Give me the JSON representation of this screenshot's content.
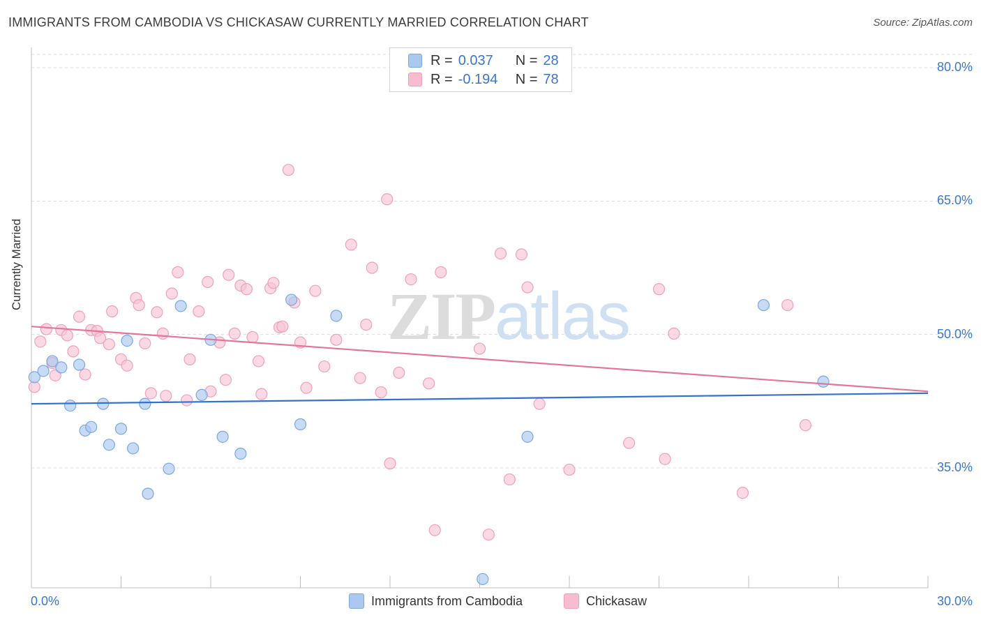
{
  "header": {
    "title": "IMMIGRANTS FROM CAMBODIA VS CHICKASAW CURRENTLY MARRIED CORRELATION CHART",
    "source": "Source: ZipAtlas.com"
  },
  "watermark": {
    "part1": "ZIP",
    "part2": "atlas"
  },
  "legend": {
    "rows": [
      {
        "r_label": "R =",
        "r_value": "0.037",
        "n_label": "N =",
        "n_value": "28",
        "color": "#aac8f0"
      },
      {
        "r_label": "R =",
        "r_value": "-0.194",
        "n_label": "N =",
        "n_value": "78",
        "color": "#f8bcd0"
      }
    ]
  },
  "bottom_legend": {
    "items": [
      {
        "label": "Immigrants from Cambodia",
        "color": "#aac8f0"
      },
      {
        "label": "Chickasaw",
        "color": "#f8bcd0"
      }
    ]
  },
  "colors": {
    "blue_fill": "#aac8f0",
    "blue_stroke": "#7aa8e0",
    "blue_line": "#2f72cf",
    "pink_fill": "#f8c4d6",
    "pink_stroke": "#eea0bc",
    "pink_line": "#e4749a",
    "tick_text": "#3a76d0",
    "grid": "#dcdcdc"
  },
  "chart_data": {
    "type": "scatter",
    "title": "IMMIGRANTS FROM CAMBODIA VS CHICKASAW CURRENTLY MARRIED CORRELATION CHART",
    "xlabel": "",
    "ylabel": "Currently Married",
    "xlim": [
      0,
      30
    ],
    "ylim": [
      20,
      82
    ],
    "x_tick_labels": [
      "0.0%",
      "30.0%"
    ],
    "y_ticks": [
      35,
      50,
      65,
      80
    ],
    "y_tick_labels": [
      "35.0%",
      "50.0%",
      "65.0%",
      "80.0%"
    ],
    "grid": true,
    "legend_position": "top-center",
    "series": [
      {
        "name": "Immigrants from Cambodia",
        "color": "#aac8f0",
        "points": [
          [
            0.1,
            45.2
          ],
          [
            0.4,
            45.9
          ],
          [
            0.7,
            47.0
          ],
          [
            1.0,
            46.3
          ],
          [
            1.3,
            42.0
          ],
          [
            1.6,
            46.6
          ],
          [
            1.8,
            39.2
          ],
          [
            2.0,
            39.6
          ],
          [
            2.4,
            42.2
          ],
          [
            2.6,
            37.6
          ],
          [
            3.0,
            39.4
          ],
          [
            3.2,
            49.3
          ],
          [
            3.4,
            37.2
          ],
          [
            3.8,
            42.2
          ],
          [
            3.9,
            32.1
          ],
          [
            4.6,
            34.9
          ],
          [
            5.0,
            53.2
          ],
          [
            5.7,
            43.2
          ],
          [
            6.0,
            49.4
          ],
          [
            6.4,
            38.5
          ],
          [
            7.0,
            36.6
          ],
          [
            8.7,
            53.9
          ],
          [
            9.0,
            39.9
          ],
          [
            10.2,
            52.1
          ],
          [
            15.1,
            22.5
          ],
          [
            16.6,
            38.5
          ],
          [
            24.5,
            53.3
          ],
          [
            26.5,
            44.7
          ]
        ],
        "trend": {
          "x": [
            0,
            30
          ],
          "y": [
            42.2,
            43.4
          ]
        }
      },
      {
        "name": "Chickasaw",
        "color": "#f8bcd0",
        "points": [
          [
            0.1,
            44.1
          ],
          [
            0.3,
            49.2
          ],
          [
            0.5,
            50.6
          ],
          [
            0.7,
            46.8
          ],
          [
            0.8,
            45.4
          ],
          [
            1.0,
            50.5
          ],
          [
            1.2,
            49.9
          ],
          [
            1.4,
            48.1
          ],
          [
            1.6,
            52.0
          ],
          [
            1.8,
            45.5
          ],
          [
            2.0,
            50.5
          ],
          [
            2.2,
            50.4
          ],
          [
            2.3,
            49.6
          ],
          [
            2.6,
            48.9
          ],
          [
            2.7,
            52.6
          ],
          [
            3.0,
            47.2
          ],
          [
            3.2,
            46.5
          ],
          [
            3.5,
            54.1
          ],
          [
            3.6,
            53.3
          ],
          [
            3.8,
            49.0
          ],
          [
            4.0,
            43.4
          ],
          [
            4.2,
            52.5
          ],
          [
            4.4,
            50.1
          ],
          [
            4.5,
            43.1
          ],
          [
            4.7,
            54.6
          ],
          [
            4.9,
            57.0
          ],
          [
            5.2,
            42.6
          ],
          [
            5.3,
            47.2
          ],
          [
            5.6,
            52.6
          ],
          [
            5.9,
            55.9
          ],
          [
            6.0,
            43.6
          ],
          [
            6.3,
            49.1
          ],
          [
            6.5,
            44.9
          ],
          [
            6.6,
            56.7
          ],
          [
            6.8,
            50.1
          ],
          [
            7.0,
            55.5
          ],
          [
            7.2,
            55.1
          ],
          [
            7.4,
            49.7
          ],
          [
            7.6,
            47.0
          ],
          [
            7.7,
            43.3
          ],
          [
            8.0,
            55.2
          ],
          [
            8.1,
            55.8
          ],
          [
            8.3,
            50.8
          ],
          [
            8.4,
            50.9
          ],
          [
            8.6,
            68.5
          ],
          [
            8.8,
            53.6
          ],
          [
            9.0,
            49.1
          ],
          [
            9.2,
            44.0
          ],
          [
            9.5,
            54.9
          ],
          [
            9.8,
            46.4
          ],
          [
            10.2,
            49.4
          ],
          [
            10.7,
            60.1
          ],
          [
            11.0,
            45.1
          ],
          [
            11.2,
            51.1
          ],
          [
            11.4,
            57.5
          ],
          [
            11.7,
            43.5
          ],
          [
            11.9,
            65.2
          ],
          [
            12.0,
            35.5
          ],
          [
            12.3,
            45.7
          ],
          [
            12.7,
            56.2
          ],
          [
            13.3,
            44.5
          ],
          [
            13.5,
            28.0
          ],
          [
            13.7,
            57.0
          ],
          [
            15.0,
            48.4
          ],
          [
            15.3,
            27.5
          ],
          [
            15.7,
            59.1
          ],
          [
            16.0,
            33.7
          ],
          [
            16.4,
            59.0
          ],
          [
            16.6,
            55.3
          ],
          [
            17.0,
            42.2
          ],
          [
            18.0,
            34.8
          ],
          [
            20.0,
            37.8
          ],
          [
            21.0,
            55.1
          ],
          [
            21.2,
            36.0
          ],
          [
            21.5,
            50.1
          ],
          [
            23.8,
            32.2
          ],
          [
            25.3,
            53.3
          ],
          [
            25.9,
            39.8
          ]
        ],
        "trend": {
          "x": [
            0,
            30
          ],
          "y": [
            50.9,
            43.6
          ]
        }
      }
    ]
  }
}
